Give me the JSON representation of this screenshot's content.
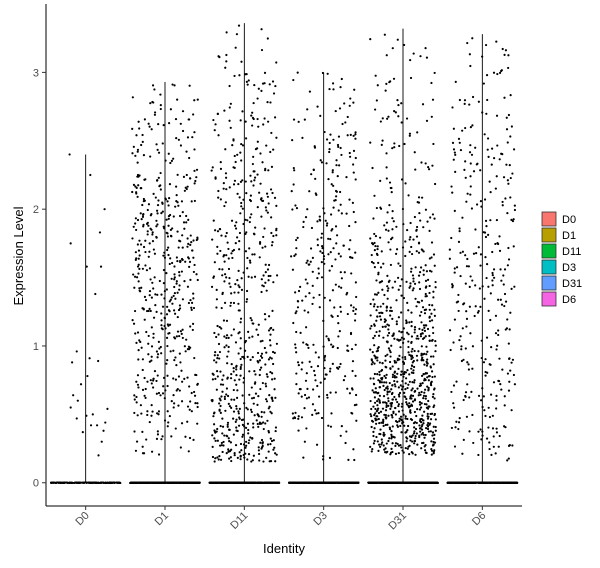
{
  "chart_data": {
    "type": "violin-jitter",
    "title": "",
    "xlabel": "Identity",
    "ylabel": "Expression Level",
    "categories": [
      "D0",
      "D1",
      "D11",
      "D3",
      "D31",
      "D6"
    ],
    "ylim": [
      -0.17,
      3.5
    ],
    "yticks": [
      0,
      1,
      2,
      3
    ],
    "grid": false,
    "legend_position": "right",
    "legend": {
      "entries": [
        {
          "label": "D0",
          "color": "#F8766D"
        },
        {
          "label": "D1",
          "color": "#B79F00"
        },
        {
          "label": "D11",
          "color": "#00BA38"
        },
        {
          "label": "D3",
          "color": "#00BFC4"
        },
        {
          "label": "D31",
          "color": "#619CFF"
        },
        {
          "label": "D6",
          "color": "#F564E3"
        }
      ]
    },
    "series": [
      {
        "category": "D0",
        "max": 2.4,
        "zero_count": 400,
        "points": [
          [
            -0.45,
            2.4
          ],
          [
            0.13,
            2.25
          ],
          [
            -0.42,
            1.75
          ],
          [
            0.4,
            1.83
          ],
          [
            0.53,
            2.0
          ],
          [
            0.03,
            1.58
          ],
          [
            0.27,
            1.38
          ],
          [
            0.43,
            1.58
          ],
          [
            -0.38,
            0.88
          ],
          [
            -0.25,
            0.96
          ],
          [
            0.11,
            0.91
          ],
          [
            0.35,
            0.89
          ],
          [
            -0.42,
            0.55
          ],
          [
            -0.35,
            0.64
          ],
          [
            -0.22,
            0.6
          ],
          [
            -0.13,
            0.72
          ],
          [
            -0.08,
            0.37
          ],
          [
            0.02,
            0.49
          ],
          [
            0.15,
            0.42
          ],
          [
            0.2,
            0.5
          ],
          [
            0.32,
            0.42
          ],
          [
            0.36,
            0.2
          ],
          [
            0.45,
            0.3
          ],
          [
            0.55,
            0.44
          ],
          [
            -0.25,
            0.47
          ],
          [
            0.61,
            0.54
          ],
          [
            0.05,
            0.78
          ],
          [
            0.5,
            0.38
          ]
        ]
      },
      {
        "category": "D1",
        "max": 2.93,
        "zero_count": 900,
        "density": [
          [
            0.2,
            0.2
          ],
          [
            1.0,
            0.8
          ],
          [
            1.8,
            1.0
          ],
          [
            2.4,
            0.6
          ],
          [
            2.95,
            0.15
          ]
        ],
        "n_points": 520,
        "seed": 11
      },
      {
        "category": "D11",
        "max": 3.36,
        "zero_count": 900,
        "density": [
          [
            0.15,
            1.0
          ],
          [
            0.6,
            0.75
          ],
          [
            1.2,
            0.45
          ],
          [
            2.0,
            0.4
          ],
          [
            2.6,
            0.25
          ],
          [
            3.36,
            0.05
          ]
        ],
        "n_points": 620,
        "seed": 22
      },
      {
        "category": "D3",
        "max": 3.0,
        "zero_count": 900,
        "density": [
          [
            0.15,
            0.35
          ],
          [
            0.8,
            0.45
          ],
          [
            1.5,
            0.55
          ],
          [
            2.2,
            0.45
          ],
          [
            3.0,
            0.1
          ]
        ],
        "n_points": 340,
        "seed": 33
      },
      {
        "category": "D31",
        "max": 3.32,
        "zero_count": 1000,
        "density": [
          [
            0.2,
            1.0
          ],
          [
            0.7,
            1.0
          ],
          [
            1.3,
            0.4
          ],
          [
            2.0,
            0.18
          ],
          [
            2.6,
            0.1
          ],
          [
            3.32,
            0.03
          ]
        ],
        "n_points": 900,
        "seed": 44
      },
      {
        "category": "D6",
        "max": 3.28,
        "zero_count": 900,
        "density": [
          [
            0.15,
            0.4
          ],
          [
            0.8,
            0.5
          ],
          [
            1.5,
            0.6
          ],
          [
            2.3,
            0.5
          ],
          [
            3.28,
            0.12
          ]
        ],
        "n_points": 330,
        "seed": 55
      }
    ]
  }
}
